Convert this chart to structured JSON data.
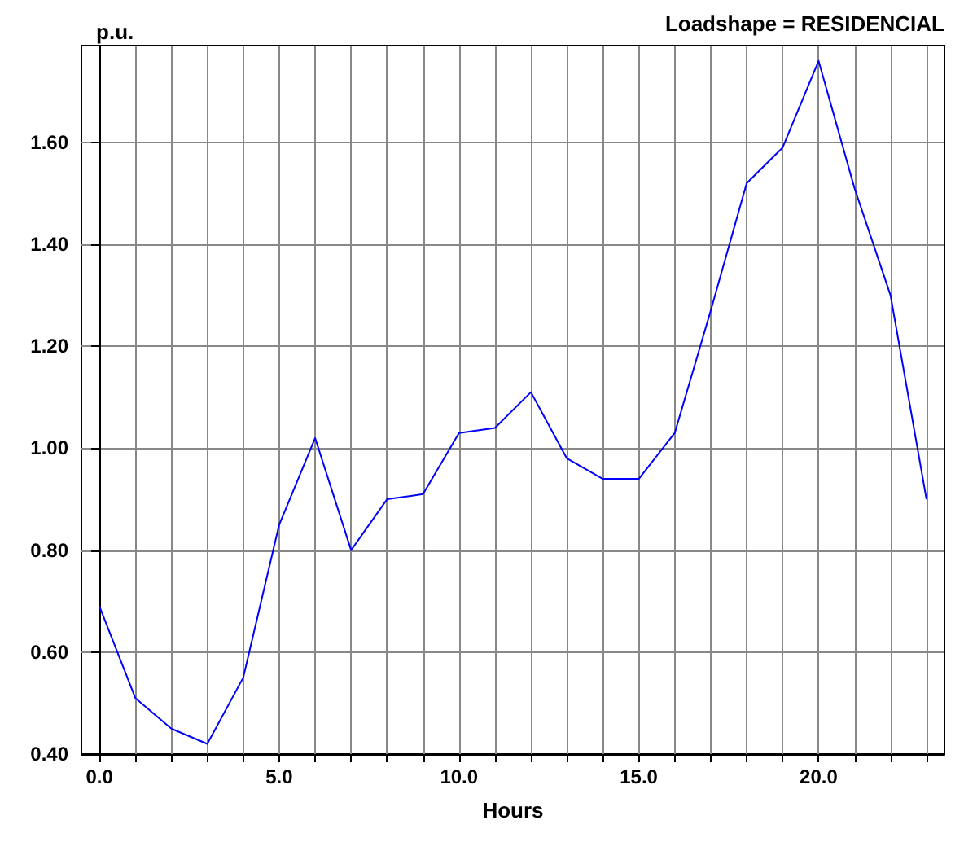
{
  "chart_data": {
    "type": "line",
    "title": "Loadshape = RESIDENCIAL",
    "xlabel": "Hours",
    "ylabel": "p.u.",
    "x": [
      0,
      1,
      2,
      3,
      4,
      5,
      6,
      7,
      8,
      9,
      10,
      11,
      12,
      13,
      14,
      15,
      16,
      17,
      18,
      19,
      20,
      21,
      22,
      23
    ],
    "series": [
      {
        "color": "#0000ff",
        "values": [
          0.69,
          0.51,
          0.45,
          0.42,
          0.55,
          0.85,
          1.02,
          0.8,
          0.9,
          0.91,
          1.03,
          1.04,
          1.11,
          0.98,
          0.94,
          0.94,
          1.03,
          1.27,
          1.52,
          1.59,
          1.76,
          1.51,
          1.3,
          0.9
        ]
      }
    ],
    "xlim": [
      -0.5,
      23.5
    ],
    "ylim": [
      0.4,
      1.79
    ],
    "xticks": [
      {
        "value": 0,
        "label": "0.0"
      },
      {
        "value": 1,
        "label": null
      },
      {
        "value": 2,
        "label": null
      },
      {
        "value": 3,
        "label": null
      },
      {
        "value": 4,
        "label": null
      },
      {
        "value": 5,
        "label": "5.0"
      },
      {
        "value": 6,
        "label": null
      },
      {
        "value": 7,
        "label": null
      },
      {
        "value": 8,
        "label": null
      },
      {
        "value": 9,
        "label": null
      },
      {
        "value": 10,
        "label": "10.0"
      },
      {
        "value": 11,
        "label": null
      },
      {
        "value": 12,
        "label": null
      },
      {
        "value": 13,
        "label": null
      },
      {
        "value": 14,
        "label": null
      },
      {
        "value": 15,
        "label": "15.0"
      },
      {
        "value": 16,
        "label": null
      },
      {
        "value": 17,
        "label": null
      },
      {
        "value": 18,
        "label": null
      },
      {
        "value": 19,
        "label": null
      },
      {
        "value": 20,
        "label": "20.0"
      },
      {
        "value": 21,
        "label": null
      },
      {
        "value": 22,
        "label": null
      },
      {
        "value": 23,
        "label": null
      }
    ],
    "yticks": [
      {
        "value": 0.4,
        "label": "0.40"
      },
      {
        "value": 0.6,
        "label": "0.60"
      },
      {
        "value": 0.8,
        "label": "0.80"
      },
      {
        "value": 1.0,
        "label": "1.00"
      },
      {
        "value": 1.2,
        "label": "1.20"
      },
      {
        "value": 1.4,
        "label": "1.40"
      },
      {
        "value": 1.6,
        "label": "1.60"
      }
    ],
    "grid": true,
    "marker": "none",
    "line_style": "solid"
  }
}
